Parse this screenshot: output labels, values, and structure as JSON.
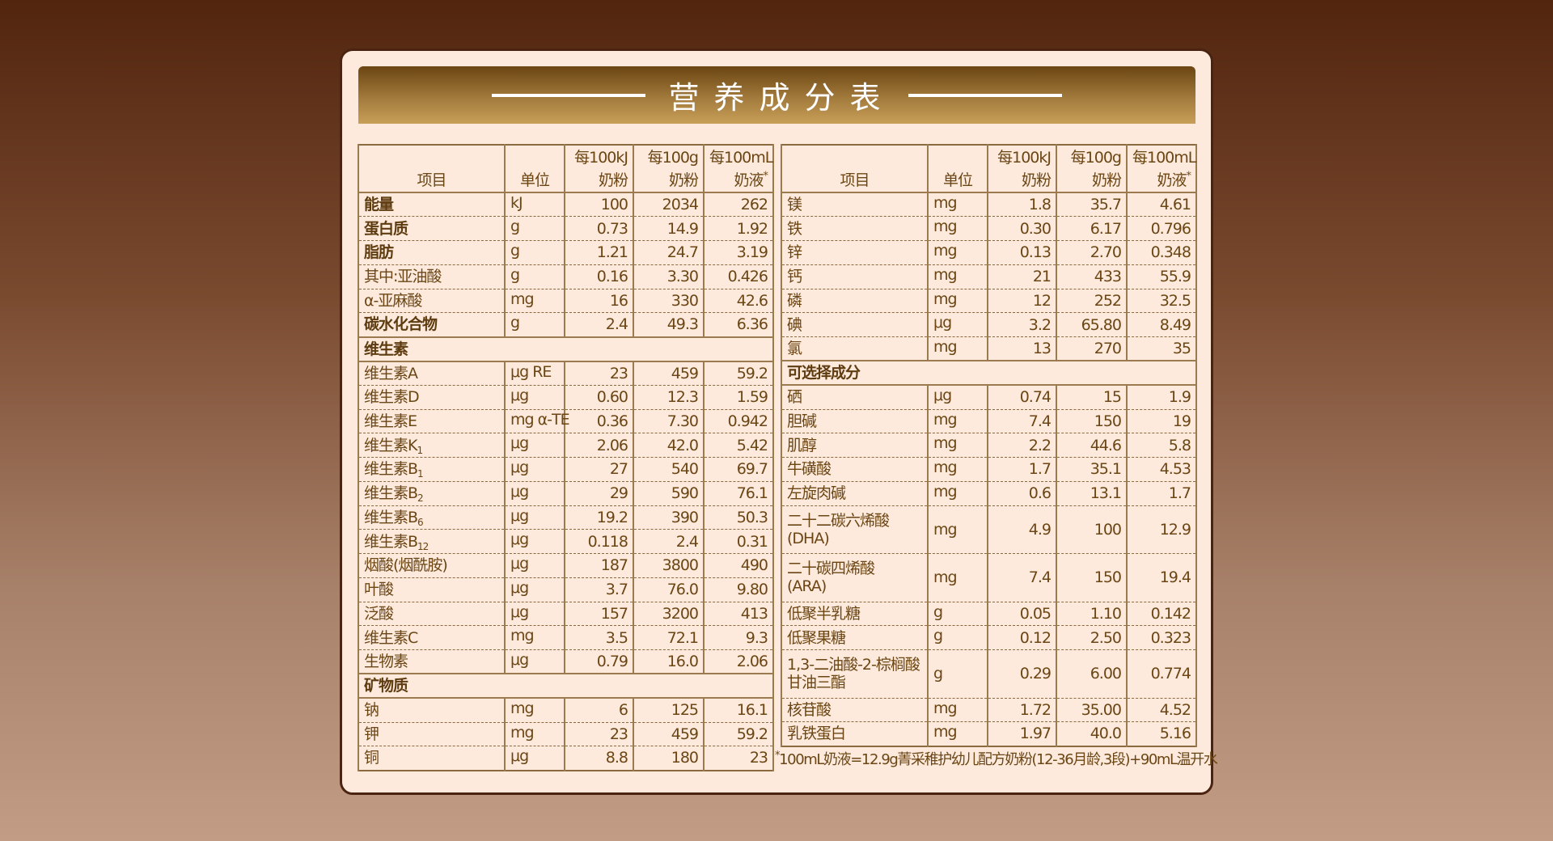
{
  "title": "营养成分表",
  "headers": {
    "item": "项目",
    "unit": "单位",
    "c1a": "每100kJ",
    "c1b": "奶粉",
    "c2a": "每100g",
    "c2b": "奶粉",
    "c3a": "每100mL",
    "c3b": "奶液",
    "c3mark": "*"
  },
  "left": [
    {
      "name": "能量",
      "bold": true,
      "unit": "kJ",
      "v": [
        "100",
        "2034",
        "262"
      ]
    },
    {
      "name": "蛋白质",
      "bold": true,
      "unit": "g",
      "v": [
        "0.73",
        "14.9",
        "1.92"
      ]
    },
    {
      "name": "脂肪",
      "bold": true,
      "unit": "g",
      "v": [
        "1.21",
        "24.7",
        "3.19"
      ]
    },
    {
      "name": "其中:亚油酸",
      "unit": "g",
      "v": [
        "0.16",
        "3.30",
        "0.426"
      ]
    },
    {
      "name": "α-亚麻酸",
      "unit": "mg",
      "v": [
        "16",
        "330",
        "42.6"
      ]
    },
    {
      "name": "碳水化合物",
      "bold": true,
      "unit": "g",
      "v": [
        "2.4",
        "49.3",
        "6.36"
      ],
      "last": true
    },
    {
      "section": "维生素"
    },
    {
      "name": "维生素A",
      "unit": "μg RE",
      "v": [
        "23",
        "459",
        "59.2"
      ]
    },
    {
      "name": "维生素D",
      "unit": "μg",
      "v": [
        "0.60",
        "12.3",
        "1.59"
      ]
    },
    {
      "name": "维生素E",
      "unit": "mg α-TE",
      "v": [
        "0.36",
        "7.30",
        "0.942"
      ]
    },
    {
      "name": "维生素K",
      "sub": "1",
      "unit": "μg",
      "v": [
        "2.06",
        "42.0",
        "5.42"
      ]
    },
    {
      "name": "维生素B",
      "sub": "1",
      "unit": "μg",
      "v": [
        "27",
        "540",
        "69.7"
      ]
    },
    {
      "name": "维生素B",
      "sub": "2",
      "unit": "μg",
      "v": [
        "29",
        "590",
        "76.1"
      ]
    },
    {
      "name": "维生素B",
      "sub": "6",
      "unit": "μg",
      "v": [
        "19.2",
        "390",
        "50.3"
      ]
    },
    {
      "name": "维生素B",
      "sub": "12",
      "unit": "μg",
      "v": [
        "0.118",
        "2.4",
        "0.31"
      ]
    },
    {
      "name": "烟酸(烟酰胺)",
      "unit": "μg",
      "v": [
        "187",
        "3800",
        "490"
      ]
    },
    {
      "name": "叶酸",
      "unit": "μg",
      "v": [
        "3.7",
        "76.0",
        "9.80"
      ]
    },
    {
      "name": "泛酸",
      "unit": "μg",
      "v": [
        "157",
        "3200",
        "413"
      ]
    },
    {
      "name": "维生素C",
      "unit": "mg",
      "v": [
        "3.5",
        "72.1",
        "9.3"
      ]
    },
    {
      "name": "生物素",
      "unit": "μg",
      "v": [
        "0.79",
        "16.0",
        "2.06"
      ],
      "last": true
    },
    {
      "section": "矿物质"
    },
    {
      "name": "钠",
      "unit": "mg",
      "v": [
        "6",
        "125",
        "16.1"
      ]
    },
    {
      "name": "钾",
      "unit": "mg",
      "v": [
        "23",
        "459",
        "59.2"
      ]
    },
    {
      "name": "铜",
      "unit": "μg",
      "v": [
        "8.8",
        "180",
        "23"
      ]
    }
  ],
  "right": [
    {
      "name": "镁",
      "unit": "mg",
      "v": [
        "1.8",
        "35.7",
        "4.61"
      ]
    },
    {
      "name": "铁",
      "unit": "mg",
      "v": [
        "0.30",
        "6.17",
        "0.796"
      ]
    },
    {
      "name": "锌",
      "unit": "mg",
      "v": [
        "0.13",
        "2.70",
        "0.348"
      ]
    },
    {
      "name": "钙",
      "unit": "mg",
      "v": [
        "21",
        "433",
        "55.9"
      ]
    },
    {
      "name": "磷",
      "unit": "mg",
      "v": [
        "12",
        "252",
        "32.5"
      ]
    },
    {
      "name": "碘",
      "unit": "μg",
      "v": [
        "3.2",
        "65.80",
        "8.49"
      ]
    },
    {
      "name": "氯",
      "unit": "mg",
      "v": [
        "13",
        "270",
        "35"
      ],
      "last": true
    },
    {
      "section": "可选择成分"
    },
    {
      "name": "硒",
      "unit": "μg",
      "v": [
        "0.74",
        "15",
        "1.9"
      ]
    },
    {
      "name": "胆碱",
      "unit": "mg",
      "v": [
        "7.4",
        "150",
        "19"
      ]
    },
    {
      "name": "肌醇",
      "unit": "mg",
      "v": [
        "2.2",
        "44.6",
        "5.8"
      ]
    },
    {
      "name": "牛磺酸",
      "unit": "mg",
      "v": [
        "1.7",
        "35.1",
        "4.53"
      ]
    },
    {
      "name": "左旋肉碱",
      "unit": "mg",
      "v": [
        "0.6",
        "13.1",
        "1.7"
      ]
    },
    {
      "name": "二十二碳六烯酸",
      "name2": "(DHA)",
      "unit": "mg",
      "v": [
        "4.9",
        "100",
        "12.9"
      ]
    },
    {
      "name": "二十碳四烯酸",
      "name2": "(ARA)",
      "unit": "mg",
      "v": [
        "7.4",
        "150",
        "19.4"
      ]
    },
    {
      "name": "低聚半乳糖",
      "unit": "g",
      "v": [
        "0.05",
        "1.10",
        "0.142"
      ]
    },
    {
      "name": "低聚果糖",
      "unit": "g",
      "v": [
        "0.12",
        "2.50",
        "0.323"
      ]
    },
    {
      "name": "1,3-二油酸-2-棕榈酸",
      "name2": "甘油三酯",
      "unit": "g",
      "v": [
        "0.29",
        "6.00",
        "0.774"
      ]
    },
    {
      "name": "核苷酸",
      "unit": "mg",
      "v": [
        "1.72",
        "35.00",
        "4.52"
      ]
    },
    {
      "name": "乳铁蛋白",
      "unit": "mg",
      "v": [
        "1.97",
        "40.0",
        "5.16"
      ]
    }
  ],
  "footnote": {
    "mark": "*",
    "text": "100mL奶液=12.9g菁采稚护幼儿配方奶粉(12-36月龄,3段)+90mL温开水"
  }
}
